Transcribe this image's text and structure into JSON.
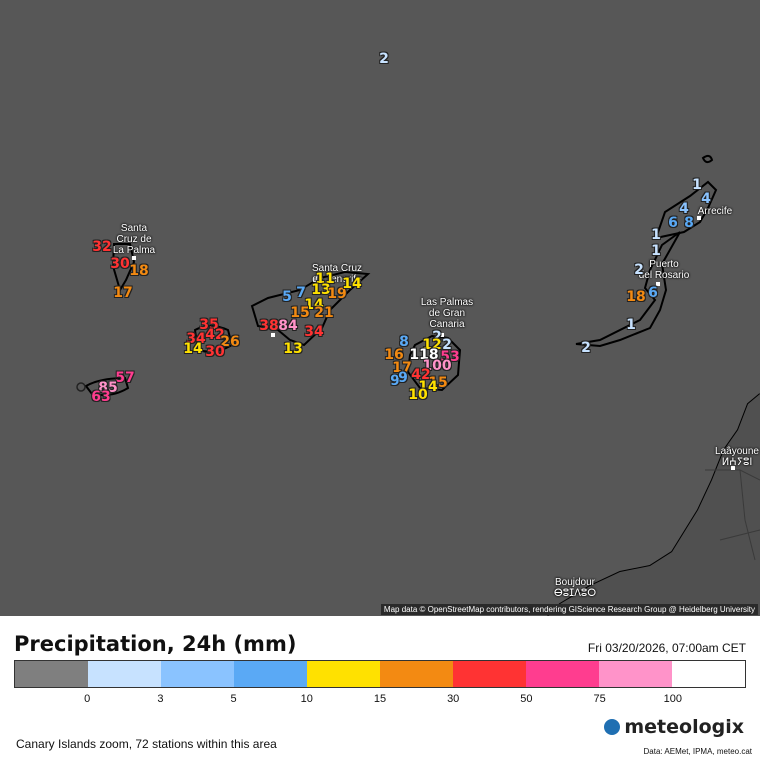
{
  "map": {
    "attribution": "Map data © OpenStreetMap contributors, rendering GIScience Research Group @ Heidelberg University",
    "places": [
      {
        "id": "santa-cruz-de-la-palma",
        "lines": [
          "Santa",
          "Cruz de",
          "La Palma"
        ]
      },
      {
        "id": "santa-cruz-de-tenerife",
        "lines": [
          "Santa Cruz",
          "de Tenerife"
        ]
      },
      {
        "id": "las-palmas",
        "lines": [
          "Las Palmas",
          "de Gran",
          "Canaria"
        ]
      },
      {
        "id": "arrecife",
        "lines": [
          "Arrecife"
        ]
      },
      {
        "id": "puerto-del-rosario",
        "lines": [
          "Puerto",
          "del Rosario"
        ]
      },
      {
        "id": "laayoune",
        "lines": [
          "Laâyoune",
          "ⵍⵄⵢⵓⵏ"
        ]
      },
      {
        "id": "boujdour",
        "lines": [
          "Boujdour",
          "ⴱⵓⵊⴷⵓⵔ"
        ]
      }
    ],
    "stations": [
      {
        "v": "2",
        "c": "#c7e2ff"
      },
      {
        "v": "1",
        "c": "#c7e2ff"
      },
      {
        "v": "4",
        "c": "#8ac3ff"
      },
      {
        "v": "4",
        "c": "#8ac3ff"
      },
      {
        "v": "6",
        "c": "#5aa9f5"
      },
      {
        "v": "8",
        "c": "#5aa9f5"
      },
      {
        "v": "1",
        "c": "#c7e2ff"
      },
      {
        "v": "1",
        "c": "#c7e2ff"
      },
      {
        "v": "2",
        "c": "#c7e2ff"
      },
      {
        "v": "18",
        "c": "#f38a12"
      },
      {
        "v": "6",
        "c": "#5aa9f5"
      },
      {
        "v": "1",
        "c": "#c7e2ff"
      },
      {
        "v": "2",
        "c": "#c7e2ff"
      },
      {
        "v": "32",
        "c": "#ff3333"
      },
      {
        "v": "30",
        "c": "#ff3333"
      },
      {
        "v": "18",
        "c": "#f38a12"
      },
      {
        "v": "17",
        "c": "#f38a12"
      },
      {
        "v": "57",
        "c": "#ff3d8f"
      },
      {
        "v": "85",
        "c": "#ff93c9"
      },
      {
        "v": "63",
        "c": "#ff3d8f"
      },
      {
        "v": "35",
        "c": "#ff3333"
      },
      {
        "v": "34",
        "c": "#ff3333"
      },
      {
        "v": "42",
        "c": "#ff3333"
      },
      {
        "v": "26",
        "c": "#f38a12"
      },
      {
        "v": "14",
        "c": "#ffe100"
      },
      {
        "v": "30",
        "c": "#ff3333"
      },
      {
        "v": "5",
        "c": "#5aa9f5"
      },
      {
        "v": "7",
        "c": "#5aa9f5"
      },
      {
        "v": "11",
        "c": "#ffe100"
      },
      {
        "v": "13",
        "c": "#ffe100"
      },
      {
        "v": "19",
        "c": "#f38a12"
      },
      {
        "v": "14",
        "c": "#ffe100"
      },
      {
        "v": "14",
        "c": "#ffe100"
      },
      {
        "v": "15",
        "c": "#f38a12"
      },
      {
        "v": "21",
        "c": "#f38a12"
      },
      {
        "v": "38",
        "c": "#ff3333"
      },
      {
        "v": "84",
        "c": "#ff93c9"
      },
      {
        "v": "34",
        "c": "#ff3333"
      },
      {
        "v": "13",
        "c": "#ffe100"
      },
      {
        "v": "8",
        "c": "#5aa9f5"
      },
      {
        "v": "2",
        "c": "#c7e2ff"
      },
      {
        "v": "2",
        "c": "#c7e2ff"
      },
      {
        "v": "12",
        "c": "#ffe100"
      },
      {
        "v": "16",
        "c": "#f38a12"
      },
      {
        "v": "118",
        "c": "#ffffff"
      },
      {
        "v": "53",
        "c": "#ff3d8f"
      },
      {
        "v": "17",
        "c": "#f38a12"
      },
      {
        "v": "100",
        "c": "#ff93c9"
      },
      {
        "v": "9",
        "c": "#5aa9f5"
      },
      {
        "v": "9",
        "c": "#5aa9f5"
      },
      {
        "v": "42",
        "c": "#ff3333"
      },
      {
        "v": "15",
        "c": "#f38a12"
      },
      {
        "v": "14",
        "c": "#ffe100"
      },
      {
        "v": "10",
        "c": "#ffe100"
      }
    ]
  },
  "legend": {
    "title": "Precipitation, 24h (mm)",
    "datetime": "Fri 03/20/2026, 07:00am CET",
    "colors": [
      "#7f7f7f",
      "#c7e2ff",
      "#8ac3ff",
      "#5aa9f5",
      "#ffe100",
      "#f38a12",
      "#ff3333",
      "#ff3d8f",
      "#ff93c9",
      "#ffffff"
    ],
    "ticks": [
      "0",
      "3",
      "5",
      "10",
      "15",
      "30",
      "50",
      "75",
      "100"
    ]
  },
  "footer": {
    "area_note": "Canary Islands zoom, 72 stations within this area",
    "brand": "meteologix",
    "sources": "Data: AEMet, IPMA, meteo.cat"
  }
}
